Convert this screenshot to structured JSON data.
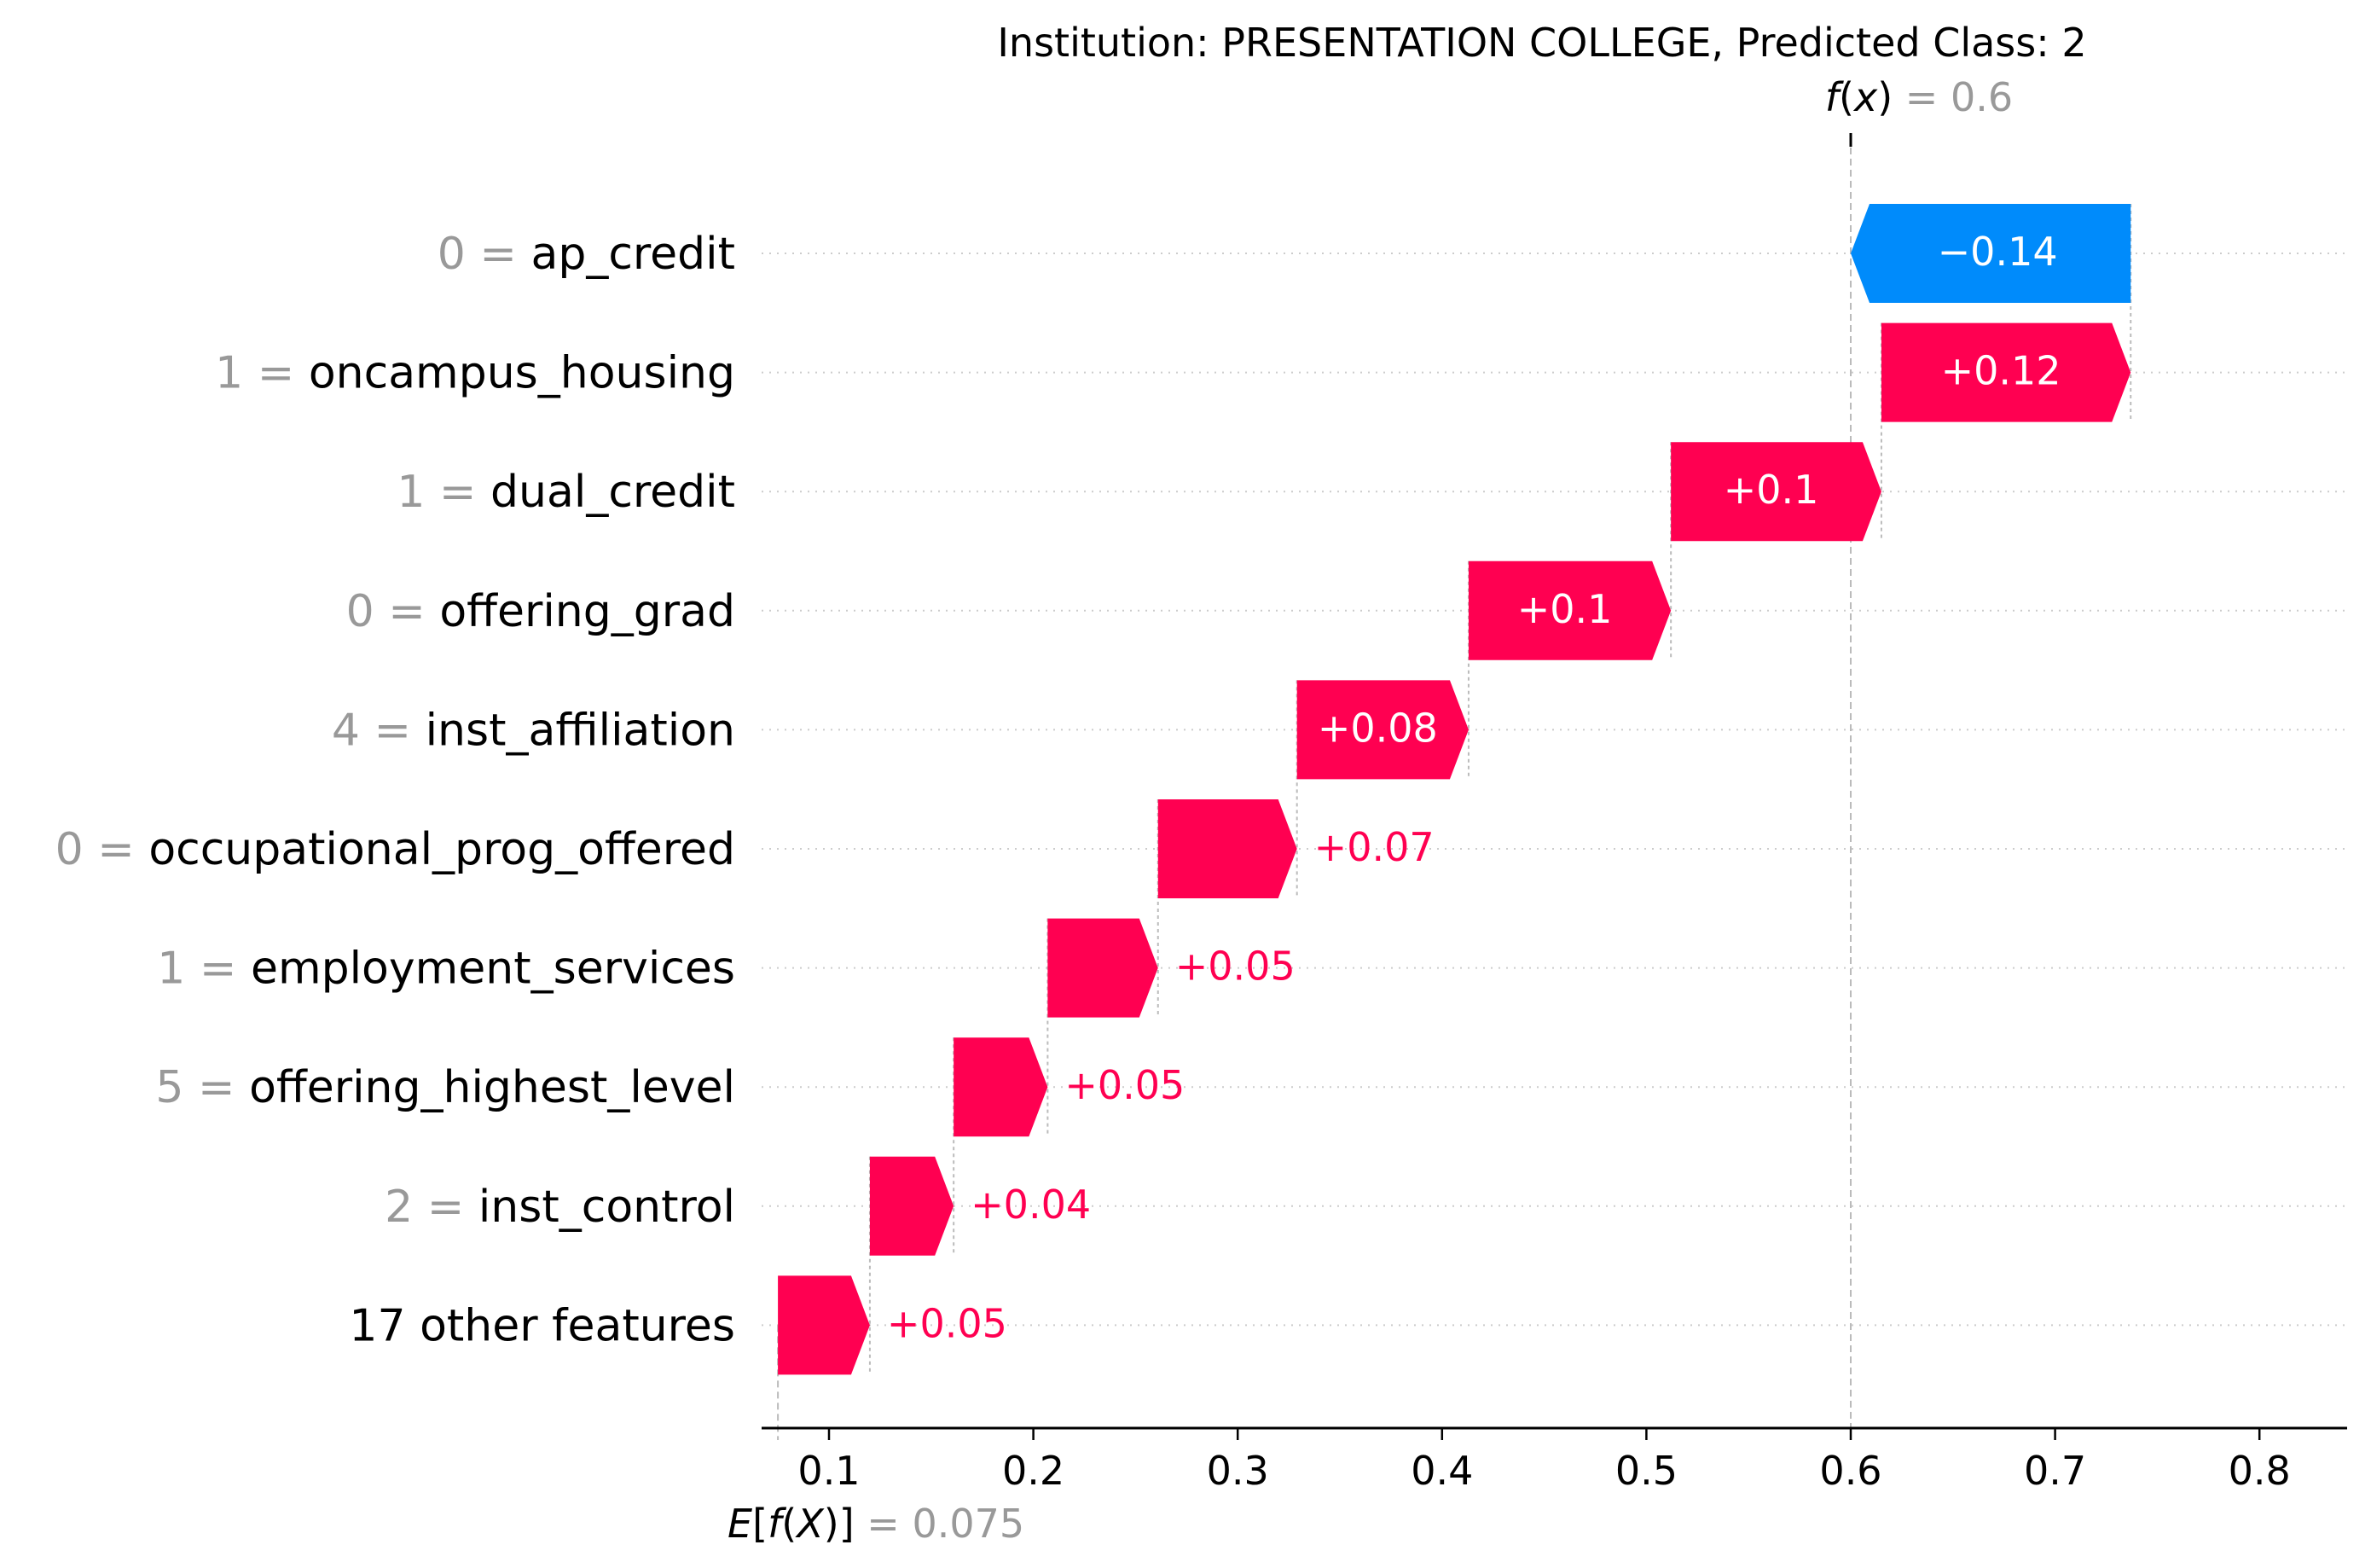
{
  "chart_data": {
    "type": "waterfall",
    "title": "Institution: PRESENTATION COLLEGE, Predicted Class: 2",
    "fx": {
      "label": "f(x)",
      "value": 0.6,
      "value_text": "0.6"
    },
    "base": {
      "label": "E[f(X)]",
      "value": 0.075,
      "value_text": "0.075"
    },
    "xlim": [
      0.075,
      0.85
    ],
    "xticks": [
      0.1,
      0.2,
      0.3,
      0.4,
      0.5,
      0.6,
      0.7,
      0.8
    ],
    "xtick_labels": [
      "0.1",
      "0.2",
      "0.3",
      "0.4",
      "0.5",
      "0.6",
      "0.7",
      "0.8"
    ],
    "colors": {
      "positive": "#ff0051",
      "negative": "#008bfb"
    },
    "features": [
      {
        "value": "0",
        "name": "ap_credit",
        "start": 0.737,
        "end": 0.6,
        "label": "−0.14"
      },
      {
        "value": "1",
        "name": "oncampus_housing",
        "start": 0.615,
        "end": 0.737,
        "label": "+0.12"
      },
      {
        "value": "1",
        "name": "dual_credit",
        "start": 0.512,
        "end": 0.615,
        "label": "+0.1"
      },
      {
        "value": "0",
        "name": "offering_grad",
        "start": 0.413,
        "end": 0.512,
        "label": "+0.1"
      },
      {
        "value": "4",
        "name": "inst_affiliation",
        "start": 0.329,
        "end": 0.413,
        "label": "+0.08"
      },
      {
        "value": "0",
        "name": "occupational_prog_offered",
        "start": 0.261,
        "end": 0.329,
        "label": "+0.07"
      },
      {
        "value": "1",
        "name": "employment_services",
        "start": 0.207,
        "end": 0.261,
        "label": "+0.05"
      },
      {
        "value": "5",
        "name": "offering_highest_level",
        "start": 0.161,
        "end": 0.207,
        "label": "+0.05"
      },
      {
        "value": "2",
        "name": "inst_control",
        "start": 0.12,
        "end": 0.161,
        "label": "+0.04"
      },
      {
        "value": "",
        "name": "17 other features",
        "start": 0.075,
        "end": 0.12,
        "label": "+0.05"
      }
    ]
  }
}
